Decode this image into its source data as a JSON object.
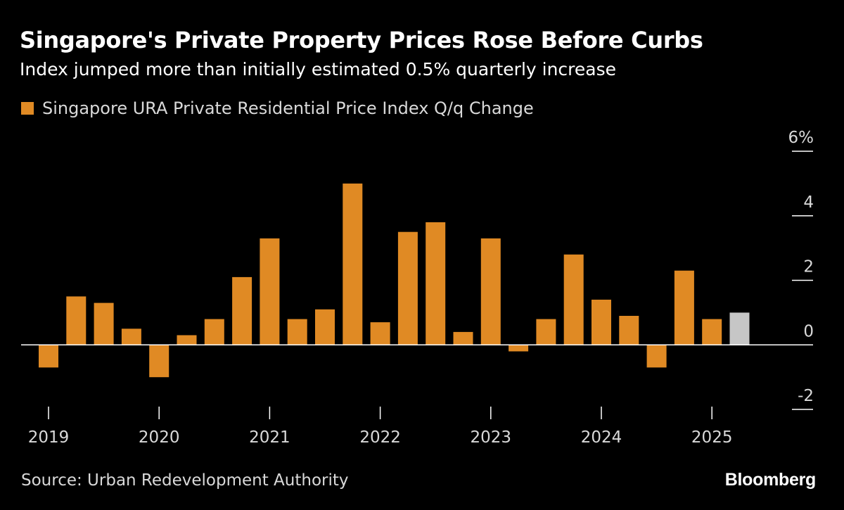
{
  "header": {
    "title": "Singapore's Private Property Prices Rose Before Curbs",
    "subtitle": "Index jumped more than initially estimated 0.5% quarterly increase"
  },
  "legend": {
    "label": "Singapore URA Private Residential Price Index Q/q Change"
  },
  "footer": {
    "source": "Source: Urban Redevelopment Authority",
    "brand": "Bloomberg"
  },
  "colors": {
    "background": "#000000",
    "bar": "#e08a24",
    "estimate": "#c6c6c6",
    "axis": "#ffffff",
    "text": "#d9d9d9"
  },
  "chart_data": {
    "type": "bar",
    "title": "Singapore's Private Property Prices Rose Before Curbs",
    "subtitle": "Index jumped more than initially estimated 0.5% quarterly increase",
    "xlabel": "",
    "ylabel": "",
    "ylim": [
      -2,
      6
    ],
    "y_ticks": [
      6,
      4,
      2,
      0,
      -2
    ],
    "y_tick_labels": [
      "6%",
      "4",
      "2",
      "0",
      "-2"
    ],
    "y_axis_side": "right",
    "grid": false,
    "legend_position": "top-left",
    "year_labels": [
      "2019",
      "2020",
      "2021",
      "2022",
      "2023",
      "2024",
      "2025"
    ],
    "categories": [
      "2019 Q1",
      "2019 Q2",
      "2019 Q3",
      "2019 Q4",
      "2020 Q1",
      "2020 Q2",
      "2020 Q3",
      "2020 Q4",
      "2021 Q1",
      "2021 Q2",
      "2021 Q3",
      "2021 Q4",
      "2022 Q1",
      "2022 Q2",
      "2022 Q3",
      "2022 Q4",
      "2023 Q1",
      "2023 Q2",
      "2023 Q3",
      "2023 Q4",
      "2024 Q1",
      "2024 Q2",
      "2024 Q3",
      "2024 Q4",
      "2025 Q1"
    ],
    "series": [
      {
        "name": "Singapore URA Private Residential Price Index Q/q Change",
        "values": [
          -0.7,
          1.5,
          1.3,
          0.5,
          -1.0,
          0.3,
          0.8,
          2.1,
          3.3,
          0.8,
          1.1,
          5.0,
          0.7,
          3.5,
          3.8,
          0.4,
          3.3,
          -0.2,
          0.8,
          2.8,
          1.4,
          0.9,
          -0.7,
          2.3,
          0.8
        ]
      }
    ],
    "estimate_bar": {
      "category": "2025 Q2",
      "value": 1.0,
      "color": "#c6c6c6"
    }
  }
}
